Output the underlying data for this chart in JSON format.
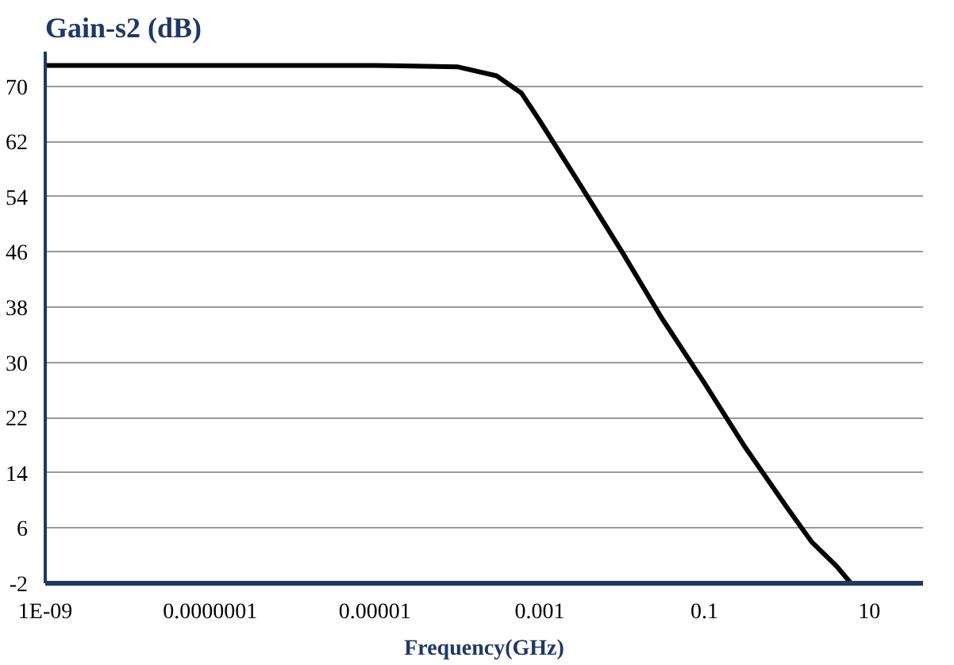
{
  "chart_data": {
    "type": "line",
    "ylabel": "Gain-s2 (dB)",
    "xlabel": "Frequency(GHz)",
    "log": "x",
    "x": [
      1e-09,
      1e-07,
      1e-05,
      0.0001,
      0.0003,
      0.0006,
      0.001,
      0.003,
      0.01,
      0.03,
      0.1,
      0.3,
      1,
      2,
      4,
      6
    ],
    "series": [
      {
        "color": "#000000",
        "values": [
          73,
          73,
          73,
          72.8,
          71.5,
          69,
          65,
          56,
          46,
          36.5,
          27,
          18,
          9,
          4,
          0.5,
          -2
        ]
      }
    ],
    "xlim": [
      1e-09,
      45
    ],
    "ylim": [
      -2,
      75
    ],
    "xticks": [
      {
        "value": 1e-09,
        "label": "1E-09"
      },
      {
        "value": 1e-07,
        "label": "0.0000001"
      },
      {
        "value": 1e-05,
        "label": "0.00001"
      },
      {
        "value": 0.001,
        "label": "0.001"
      },
      {
        "value": 0.1,
        "label": "0.1"
      },
      10
    ],
    "yticks": [
      -2,
      6,
      14,
      22,
      30,
      38,
      46,
      54,
      62,
      70
    ],
    "grid": "y",
    "marker": "none",
    "line_style": "solid"
  }
}
